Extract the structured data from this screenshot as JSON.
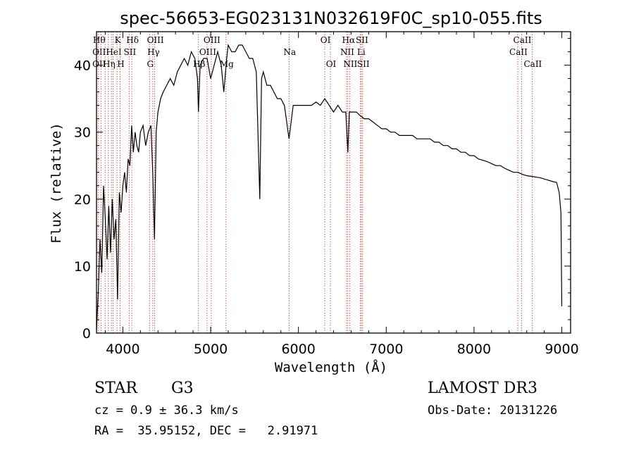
{
  "chart_data": {
    "type": "line",
    "title": "spec-56653-EG023131N032619F0C_sp10-055.fits",
    "xlabel": "Wavelength (Å)",
    "ylabel": "Flux (relative)",
    "xlim": [
      3700,
      9100
    ],
    "ylim": [
      0,
      45
    ],
    "xticks": [
      4000,
      5000,
      6000,
      7000,
      8000,
      9000
    ],
    "yticks": [
      0,
      10,
      20,
      30,
      40
    ],
    "xtick_labels": [
      "4000",
      "5000",
      "6000",
      "7000",
      "8000",
      "9000"
    ],
    "ytick_labels": [
      "0",
      "10",
      "20",
      "30",
      "40"
    ],
    "series": [
      {
        "x": [
          3700,
          3720,
          3740,
          3760,
          3780,
          3800,
          3820,
          3840,
          3860,
          3880,
          3900,
          3920,
          3940,
          3960,
          3980,
          4000,
          4020,
          4040,
          4060,
          4080,
          4100,
          4120,
          4140,
          4160,
          4180,
          4200,
          4230,
          4260,
          4290,
          4320,
          4340,
          4360,
          4380,
          4400,
          4430,
          4460,
          4500,
          4540,
          4580,
          4620,
          4660,
          4700,
          4740,
          4780,
          4820,
          4850,
          4861,
          4880,
          4920,
          4960,
          5000,
          5040,
          5080,
          5120,
          5150,
          5183,
          5200,
          5240,
          5280,
          5320,
          5360,
          5400,
          5440,
          5480,
          5520,
          5560,
          5580,
          5600,
          5640,
          5680,
          5720,
          5760,
          5800,
          5840,
          5893,
          5940,
          6000,
          6050,
          6100,
          6150,
          6200,
          6250,
          6300,
          6350,
          6400,
          6450,
          6500,
          6540,
          6563,
          6580,
          6620,
          6660,
          6700,
          6750,
          6800,
          6850,
          6900,
          6950,
          7000,
          7050,
          7100,
          7150,
          7200,
          7250,
          7300,
          7350,
          7400,
          7450,
          7500,
          7550,
          7600,
          7650,
          7700,
          7750,
          7800,
          7850,
          7900,
          7950,
          8000,
          8050,
          8100,
          8150,
          8200,
          8250,
          8300,
          8350,
          8400,
          8450,
          8500,
          8550,
          8600,
          8650,
          8700,
          8750,
          8800,
          8850,
          8900,
          8940,
          8970,
          8990,
          9000
        ],
        "y": [
          0.5,
          6,
          14,
          9,
          22,
          17,
          11,
          19,
          12,
          20,
          14,
          17,
          5,
          21,
          18,
          22,
          24,
          21,
          26,
          25,
          31,
          27,
          30,
          28,
          27,
          30,
          31,
          28,
          30,
          31,
          24,
          14,
          30,
          33,
          35,
          36,
          37,
          38,
          37,
          39,
          40,
          41,
          40,
          42,
          41,
          38,
          33,
          40,
          41,
          41,
          38,
          40,
          42,
          40,
          36,
          41,
          43,
          42,
          42,
          43,
          43,
          42,
          41,
          41,
          39,
          20,
          38,
          39,
          37,
          37,
          36,
          35,
          35,
          34,
          29,
          34,
          34,
          34,
          34,
          34,
          34.5,
          34,
          35,
          34,
          33,
          34,
          33,
          33,
          27,
          33,
          33,
          33,
          32.5,
          32,
          32,
          31.5,
          31,
          30.5,
          30.5,
          30,
          30,
          29.5,
          29.5,
          29.5,
          29.5,
          29,
          29,
          29,
          29,
          28.5,
          28.5,
          28,
          28,
          27.5,
          27.5,
          27,
          27,
          26.5,
          26.5,
          26,
          25.8,
          25.6,
          25.3,
          25,
          25,
          24.6,
          24.3,
          24,
          24,
          23.7,
          23.5,
          23.4,
          23.3,
          23.2,
          23,
          22.8,
          22.6,
          22.5,
          21,
          18,
          4
        ]
      }
    ],
    "line_markers": [
      {
        "wl": 3722,
        "top": "Hθ",
        "mid": "OII",
        "bot": "OII"
      },
      {
        "wl": 3750,
        "top": "",
        "mid": "",
        "bot": ""
      },
      {
        "wl": 3798,
        "top": "",
        "mid": "",
        "bot": ""
      },
      {
        "wl": 3835,
        "top": "",
        "mid": "",
        "bot": "Hη"
      },
      {
        "wl": 3870,
        "top": "",
        "mid": "",
        "bot": ""
      },
      {
        "wl": 3889,
        "top": "",
        "mid": "HeI",
        "bot": ""
      },
      {
        "wl": 3934,
        "top": "K",
        "mid": "",
        "bot": ""
      },
      {
        "wl": 3969,
        "top": "",
        "mid": "",
        "bot": "H"
      },
      {
        "wl": 4072,
        "top": "",
        "mid": "SII",
        "bot": ""
      },
      {
        "wl": 4102,
        "top": "Hδ",
        "mid": "",
        "bot": ""
      },
      {
        "wl": 4304,
        "top": "",
        "mid": "",
        "bot": "G"
      },
      {
        "wl": 4341,
        "top": "",
        "mid": "Hγ",
        "bot": ""
      },
      {
        "wl": 4363,
        "top": "OIII",
        "mid": "",
        "bot": ""
      },
      {
        "wl": 4861,
        "top": "",
        "mid": "",
        "bot": "Hβ"
      },
      {
        "wl": 4959,
        "top": "",
        "mid": "OIII",
        "bot": ""
      },
      {
        "wl": 5007,
        "top": "OIII",
        "mid": "",
        "bot": ""
      },
      {
        "wl": 5175,
        "top": "",
        "mid": "",
        "bot": "Mg"
      },
      {
        "wl": 5893,
        "top": "",
        "mid": "Na",
        "bot": ""
      },
      {
        "wl": 6300,
        "top": "OI",
        "mid": "",
        "bot": ""
      },
      {
        "wl": 6364,
        "top": "",
        "mid": "",
        "bot": "OI"
      },
      {
        "wl": 6548,
        "top": "",
        "mid": "NII",
        "bot": ""
      },
      {
        "wl": 6563,
        "top": "Hα",
        "mid": "",
        "bot": ""
      },
      {
        "wl": 6583,
        "top": "",
        "mid": "",
        "bot": "NII"
      },
      {
        "wl": 6707,
        "top": "",
        "mid": "Li",
        "bot": ""
      },
      {
        "wl": 6716,
        "top": "SII",
        "mid": "",
        "bot": ""
      },
      {
        "wl": 6731,
        "top": "",
        "mid": "",
        "bot": "SII"
      },
      {
        "wl": 8498,
        "top": "",
        "mid": "CaII",
        "bot": ""
      },
      {
        "wl": 8542,
        "top": "CaII",
        "mid": "",
        "bot": ""
      },
      {
        "wl": 8662,
        "top": "",
        "mid": "",
        "bot": "CaII"
      }
    ],
    "grid": false
  },
  "footer": {
    "class_label": "STAR",
    "subclass": "G3",
    "survey": "LAMOST DR3",
    "redshift": "cz = 0.9 ± 36.3 km/s",
    "obs_date": "Obs-Date: 20131226",
    "coords": "RA =  35.95152, DEC =   2.91971"
  },
  "colors": {
    "spectrum": "#000000",
    "marker": "#c0392b"
  }
}
